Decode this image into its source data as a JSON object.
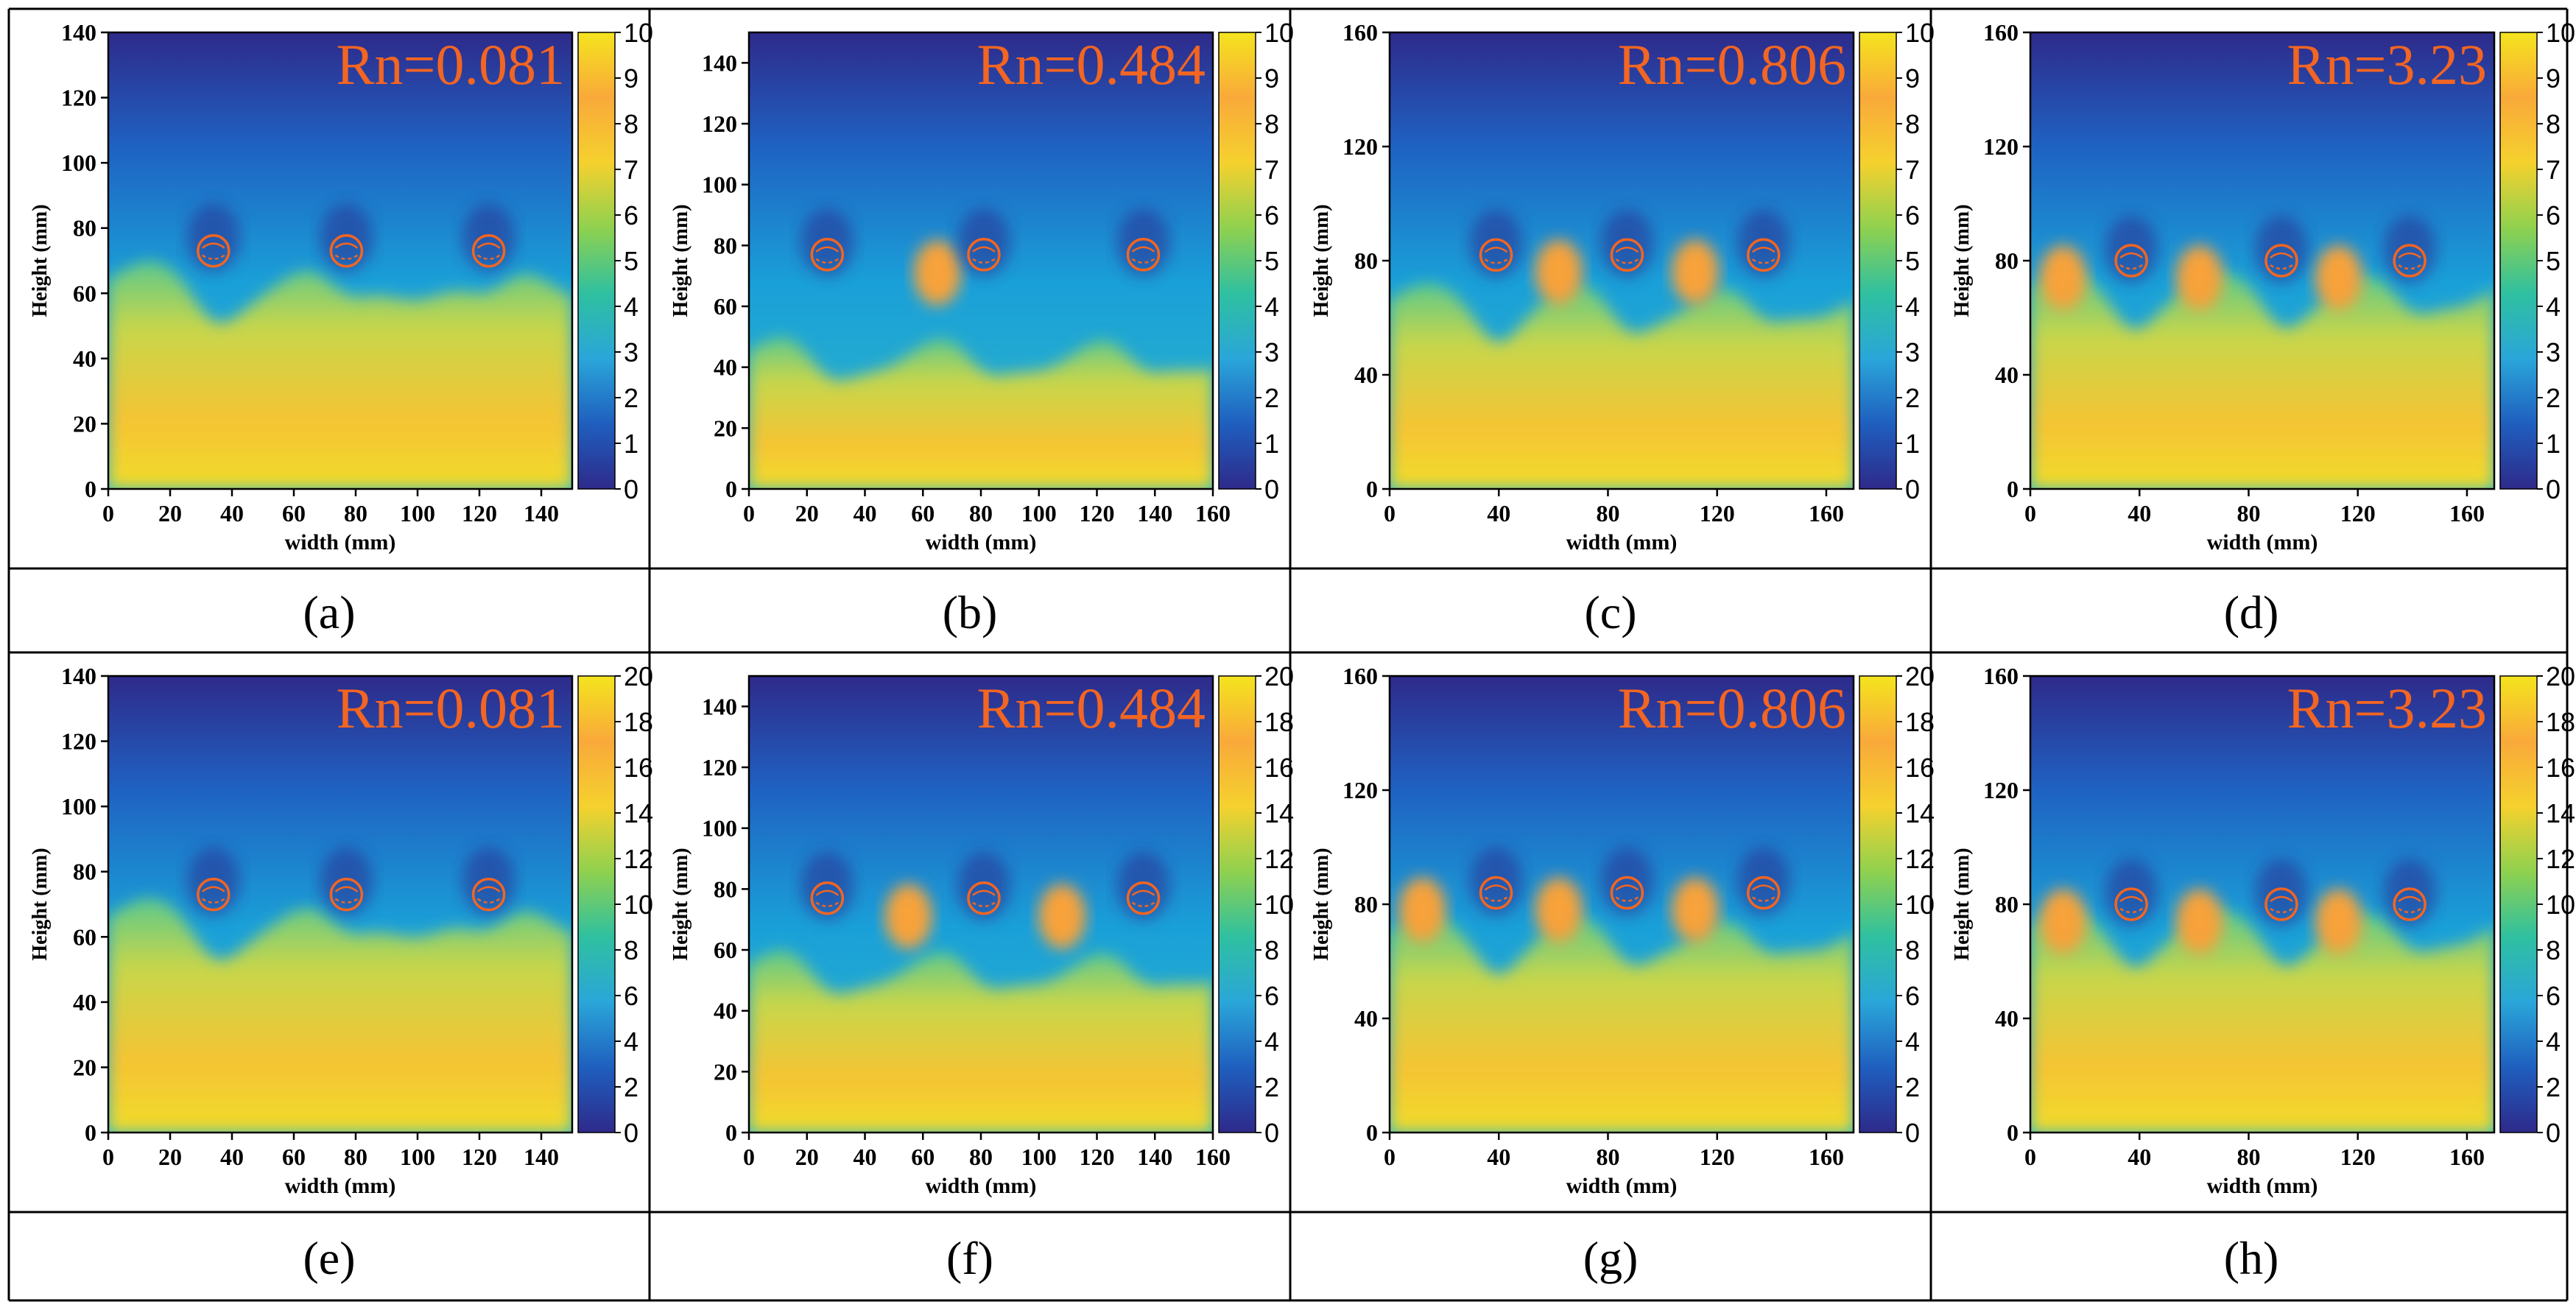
{
  "figure": {
    "layout": "2x4 grid of contour maps with caption row beneath each",
    "label_color": "#f26522"
  },
  "colormap": [
    "#2e2a8a",
    "#1f5fbf",
    "#2aa6d9",
    "#2fc0a0",
    "#8fd14f",
    "#f5d12e",
    "#f9a93a",
    "#f4e41e"
  ],
  "chart_data": [
    {
      "type": "heatmap",
      "panel": "(a)",
      "annotation": "Rn=0.081",
      "xlabel": "width (mm)",
      "ylabel": "Height (mm)",
      "xlim": [
        0,
        150
      ],
      "ylim": [
        0,
        140
      ],
      "xticks": [
        "0",
        "20",
        "40",
        "60",
        "80",
        "100",
        "120",
        "140"
      ],
      "yticks": [
        "0",
        "20",
        "40",
        "60",
        "80",
        "100",
        "120",
        "140"
      ],
      "colorbar_ticks": [
        "0",
        "1",
        "2",
        "3",
        "4",
        "5",
        "6",
        "7",
        "8",
        "9",
        "10"
      ],
      "colorbar_range": [
        0,
        10
      ],
      "front_height": 64,
      "cylinders_x": [
        34,
        77,
        123
      ],
      "cylinder_y": 73,
      "hot_spots_x": []
    },
    {
      "type": "heatmap",
      "panel": "(b)",
      "annotation": "Rn=0.484",
      "xlabel": "width (mm)",
      "ylabel": "Height (mm)",
      "xlim": [
        0,
        160
      ],
      "ylim": [
        0,
        150
      ],
      "xticks": [
        "0",
        "20",
        "40",
        "60",
        "80",
        "100",
        "120",
        "140",
        "160"
      ],
      "yticks": [
        "0",
        "20",
        "40",
        "60",
        "80",
        "100",
        "120",
        "140"
      ],
      "colorbar_ticks": [
        "0",
        "1",
        "2",
        "3",
        "4",
        "5",
        "6",
        "7",
        "8",
        "9",
        "10"
      ],
      "colorbar_range": [
        0,
        10
      ],
      "front_height": 45,
      "cylinders_x": [
        27,
        81,
        136
      ],
      "cylinder_y": 77,
      "hot_spots_x": [
        65
      ]
    },
    {
      "type": "heatmap",
      "panel": "(c)",
      "annotation": "Rn=0.806",
      "xlabel": "width (mm)",
      "ylabel": "Height (mm)",
      "xlim": [
        0,
        170
      ],
      "ylim": [
        0,
        160
      ],
      "xticks": [
        "0",
        "40",
        "80",
        "120",
        "160"
      ],
      "yticks": [
        "0",
        "40",
        "80",
        "120",
        "160"
      ],
      "colorbar_ticks": [
        "0",
        "1",
        "2",
        "3",
        "4",
        "5",
        "6",
        "7",
        "8",
        "9",
        "10"
      ],
      "colorbar_range": [
        0,
        10
      ],
      "front_height": 66,
      "cylinders_x": [
        39,
        87,
        137
      ],
      "cylinder_y": 82,
      "hot_spots_x": [
        62,
        112
      ]
    },
    {
      "type": "heatmap",
      "panel": "(d)",
      "annotation": "Rn=3.23",
      "xlabel": "width (mm)",
      "ylabel": "Height (mm)",
      "xlim": [
        0,
        170
      ],
      "ylim": [
        0,
        160
      ],
      "xticks": [
        "0",
        "40",
        "80",
        "120",
        "160"
      ],
      "yticks": [
        "0",
        "40",
        "80",
        "120",
        "160"
      ],
      "colorbar_ticks": [
        "0",
        "1",
        "2",
        "3",
        "4",
        "5",
        "6",
        "7",
        "8",
        "9",
        "10"
      ],
      "colorbar_range": [
        0,
        10
      ],
      "front_height": 70,
      "cylinders_x": [
        37,
        92,
        139
      ],
      "cylinder_y": 80,
      "hot_spots_x": [
        12,
        62,
        113
      ]
    },
    {
      "type": "heatmap",
      "panel": "(e)",
      "annotation": "Rn=0.081",
      "xlabel": "width (mm)",
      "ylabel": "Height (mm)",
      "xlim": [
        0,
        150
      ],
      "ylim": [
        0,
        140
      ],
      "xticks": [
        "0",
        "20",
        "40",
        "60",
        "80",
        "100",
        "120",
        "140"
      ],
      "yticks": [
        "0",
        "20",
        "40",
        "60",
        "80",
        "100",
        "120",
        "140"
      ],
      "colorbar_ticks": [
        "0",
        "2",
        "4",
        "6",
        "8",
        "10",
        "12",
        "14",
        "16",
        "18",
        "20"
      ],
      "colorbar_range": [
        0,
        20
      ],
      "front_height": 66,
      "cylinders_x": [
        34,
        77,
        123
      ],
      "cylinder_y": 73,
      "hot_spots_x": []
    },
    {
      "type": "heatmap",
      "panel": "(f)",
      "annotation": "Rn=0.484",
      "xlabel": "width (mm)",
      "ylabel": "Height (mm)",
      "xlim": [
        0,
        160
      ],
      "ylim": [
        0,
        150
      ],
      "xticks": [
        "0",
        "20",
        "40",
        "60",
        "80",
        "100",
        "120",
        "140",
        "160"
      ],
      "yticks": [
        "0",
        "20",
        "40",
        "60",
        "80",
        "100",
        "120",
        "140"
      ],
      "colorbar_ticks": [
        "0",
        "2",
        "4",
        "6",
        "8",
        "10",
        "12",
        "14",
        "16",
        "18",
        "20"
      ],
      "colorbar_range": [
        0,
        20
      ],
      "front_height": 55,
      "cylinders_x": [
        27,
        81,
        136
      ],
      "cylinder_y": 77,
      "hot_spots_x": [
        55,
        108
      ]
    },
    {
      "type": "heatmap",
      "panel": "(g)",
      "annotation": "Rn=0.806",
      "xlabel": "width (mm)",
      "ylabel": "Height (mm)",
      "xlim": [
        0,
        170
      ],
      "ylim": [
        0,
        160
      ],
      "xticks": [
        "0",
        "40",
        "80",
        "120",
        "160"
      ],
      "yticks": [
        "0",
        "40",
        "80",
        "120",
        "160"
      ],
      "colorbar_ticks": [
        "0",
        "2",
        "4",
        "6",
        "8",
        "10",
        "12",
        "14",
        "16",
        "18",
        "20"
      ],
      "colorbar_range": [
        0,
        20
      ],
      "front_height": 70,
      "cylinders_x": [
        39,
        87,
        137
      ],
      "cylinder_y": 84,
      "hot_spots_x": [
        12,
        62,
        112
      ]
    },
    {
      "type": "heatmap",
      "panel": "(h)",
      "annotation": "Rn=3.23",
      "xlabel": "width (mm)",
      "ylabel": "Height (mm)",
      "xlim": [
        0,
        170
      ],
      "ylim": [
        0,
        160
      ],
      "xticks": [
        "0",
        "40",
        "80",
        "120",
        "160"
      ],
      "yticks": [
        "0",
        "40",
        "80",
        "120",
        "160"
      ],
      "colorbar_ticks": [
        "0",
        "2",
        "4",
        "6",
        "8",
        "10",
        "12",
        "14",
        "16",
        "18",
        "20"
      ],
      "colorbar_range": [
        0,
        20
      ],
      "front_height": 72,
      "cylinders_x": [
        37,
        92,
        139
      ],
      "cylinder_y": 80,
      "hot_spots_x": [
        12,
        62,
        113
      ]
    }
  ]
}
